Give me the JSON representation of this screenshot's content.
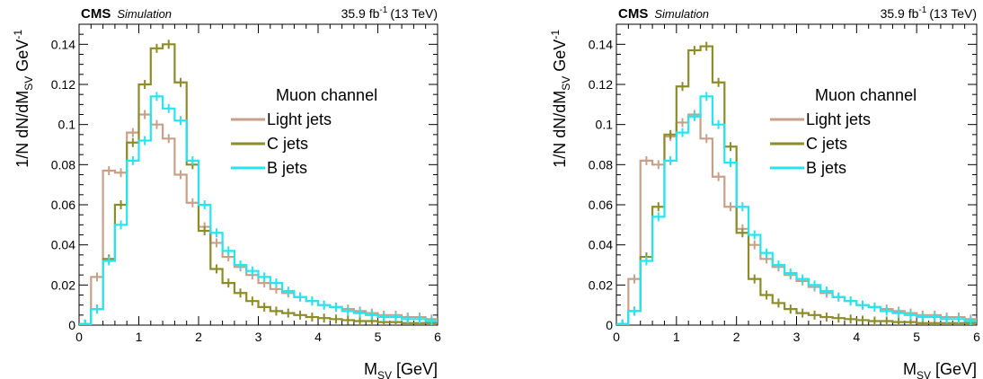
{
  "chart_data": [
    {
      "type": "line",
      "step": true,
      "header": {
        "experiment": "CMS",
        "status": "Simulation",
        "lumi": "35.9 fb",
        "lumi_exp": "-1",
        "energy": "(13 TeV)"
      },
      "ylabel": {
        "main": "1/N dN/dM",
        "sub": "SV",
        "unit": " GeV",
        "unit_exp": "-1"
      },
      "xlabel": {
        "main": "M",
        "sub": "SV",
        "unit": " [GeV]"
      },
      "xlim": [
        0,
        6
      ],
      "ylim": [
        0,
        0.15
      ],
      "xticks": [
        0,
        1,
        2,
        3,
        4,
        5,
        6
      ],
      "yticks": [
        0,
        0.02,
        0.04,
        0.06,
        0.08,
        0.1,
        0.12,
        0.14
      ],
      "ytick_labels": [
        "0",
        "0.02",
        "0.04",
        "0.06",
        "0.08",
        "0.1",
        "0.12",
        "0.14"
      ],
      "legend_title": "Muon channel",
      "legend_position": "top-right",
      "bin_edges": [
        0,
        0.2,
        0.4,
        0.6,
        0.8,
        1.0,
        1.2,
        1.4,
        1.6,
        1.8,
        2.0,
        2.2,
        2.4,
        2.6,
        2.8,
        3.0,
        3.2,
        3.4,
        3.6,
        3.8,
        4.0,
        4.2,
        4.4,
        4.6,
        4.8,
        5.0,
        5.2,
        5.4,
        5.6,
        5.8,
        6.0
      ],
      "series": [
        {
          "name": "Light jets",
          "color": "#c8a08a",
          "values": [
            0.0005,
            0.024,
            0.077,
            0.076,
            0.096,
            0.105,
            0.1,
            0.093,
            0.075,
            0.061,
            0.049,
            0.041,
            0.034,
            0.029,
            0.025,
            0.021,
            0.018,
            0.016,
            0.014,
            0.012,
            0.01,
            0.009,
            0.008,
            0.007,
            0.006,
            0.005,
            0.005,
            0.004,
            0.004,
            0.003
          ]
        },
        {
          "name": "C jets",
          "color": "#8c8c28",
          "values": [
            0.0005,
            0.008,
            0.033,
            0.06,
            0.091,
            0.12,
            0.138,
            0.14,
            0.121,
            0.08,
            0.047,
            0.028,
            0.021,
            0.016,
            0.012,
            0.009,
            0.007,
            0.006,
            0.005,
            0.004,
            0.0035,
            0.003,
            0.0025,
            0.002,
            0.002,
            0.0015,
            0.0015,
            0.001,
            0.001,
            0.001
          ]
        },
        {
          "name": "B jets",
          "color": "#25e5f0",
          "values": [
            0.0005,
            0.008,
            0.032,
            0.05,
            0.082,
            0.092,
            0.114,
            0.108,
            0.102,
            0.082,
            0.06,
            0.046,
            0.037,
            0.03,
            0.027,
            0.024,
            0.021,
            0.017,
            0.014,
            0.012,
            0.01,
            0.009,
            0.007,
            0.006,
            0.005,
            0.004,
            0.004,
            0.003,
            0.003,
            0.002
          ]
        }
      ]
    },
    {
      "type": "line",
      "step": true,
      "header": {
        "experiment": "CMS",
        "status": "Simulation",
        "lumi": "35.9 fb",
        "lumi_exp": "-1",
        "energy": "(13 TeV)"
      },
      "ylabel": {
        "main": "1/N dN/dM",
        "sub": "SV",
        "unit": " GeV",
        "unit_exp": "-1"
      },
      "xlabel": {
        "main": "M",
        "sub": "SV",
        "unit": " [GeV]"
      },
      "xlim": [
        0,
        6
      ],
      "ylim": [
        0,
        0.15
      ],
      "xticks": [
        0,
        1,
        2,
        3,
        4,
        5,
        6
      ],
      "yticks": [
        0,
        0.02,
        0.04,
        0.06,
        0.08,
        0.1,
        0.12,
        0.14
      ],
      "ytick_labels": [
        "0",
        "0.02",
        "0.04",
        "0.06",
        "0.08",
        "0.1",
        "0.12",
        "0.14"
      ],
      "legend_title": "Muon channel",
      "legend_position": "top-right",
      "bin_edges": [
        0,
        0.2,
        0.4,
        0.6,
        0.8,
        1.0,
        1.2,
        1.4,
        1.6,
        1.8,
        2.0,
        2.2,
        2.4,
        2.6,
        2.8,
        3.0,
        3.2,
        3.4,
        3.6,
        3.8,
        4.0,
        4.2,
        4.4,
        4.6,
        4.8,
        5.0,
        5.2,
        5.4,
        5.6,
        5.8,
        6.0
      ],
      "series": [
        {
          "name": "Light jets",
          "color": "#c8a08a",
          "values": [
            0.0005,
            0.023,
            0.082,
            0.08,
            0.094,
            0.101,
            0.105,
            0.093,
            0.074,
            0.059,
            0.048,
            0.04,
            0.033,
            0.029,
            0.025,
            0.022,
            0.019,
            0.016,
            0.014,
            0.012,
            0.01,
            0.009,
            0.008,
            0.007,
            0.006,
            0.005,
            0.005,
            0.004,
            0.004,
            0.003
          ]
        },
        {
          "name": "C jets",
          "color": "#8c8c28",
          "values": [
            0.0005,
            0.007,
            0.034,
            0.059,
            0.095,
            0.119,
            0.137,
            0.139,
            0.121,
            0.089,
            0.046,
            0.023,
            0.015,
            0.011,
            0.008,
            0.006,
            0.005,
            0.004,
            0.0035,
            0.003,
            0.0025,
            0.002,
            0.002,
            0.0015,
            0.0015,
            0.001,
            0.001,
            0.001,
            0.001,
            0.001
          ]
        },
        {
          "name": "B jets",
          "color": "#25e5f0",
          "values": [
            0.0005,
            0.007,
            0.032,
            0.054,
            0.082,
            0.096,
            0.104,
            0.114,
            0.1,
            0.081,
            0.059,
            0.045,
            0.036,
            0.03,
            0.026,
            0.023,
            0.02,
            0.017,
            0.014,
            0.012,
            0.01,
            0.009,
            0.007,
            0.006,
            0.005,
            0.004,
            0.004,
            0.003,
            0.003,
            0.002
          ]
        }
      ]
    }
  ]
}
